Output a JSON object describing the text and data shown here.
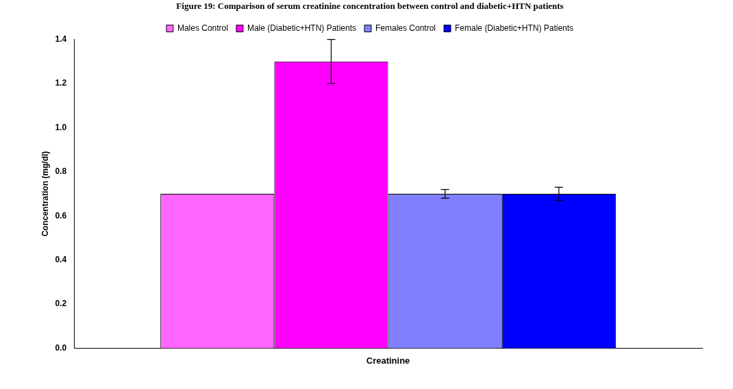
{
  "chart_data": {
    "type": "bar",
    "title": "Figure 19: Comparison of serum creatinine concentration between control and diabetic+HTN patients",
    "categories": [
      "Creatinine"
    ],
    "ylabel": "Concentration (mg/dl)",
    "series": [
      {
        "name": "Males Control",
        "color": "#ff66ff",
        "values": [
          0.7
        ],
        "errors": [
          null
        ]
      },
      {
        "name": "Male (Diabetic+HTN) Patients",
        "color": "#ff00ff",
        "values": [
          1.3
        ],
        "errors": [
          0.1
        ]
      },
      {
        "name": "Females Control",
        "color": "#8080ff",
        "values": [
          0.7
        ],
        "errors": [
          0.02
        ]
      },
      {
        "name": "Female (Diabetic+HTN) Patients",
        "color": "#0000ff",
        "values": [
          0.7
        ],
        "errors": [
          0.03
        ]
      }
    ],
    "ylim": [
      0,
      1.4
    ],
    "yticks": [
      {
        "value": 0,
        "label": "0.0"
      },
      {
        "value": 0.2,
        "label": "0.2"
      },
      {
        "value": 0.4,
        "label": "0.4"
      },
      {
        "value": 0.6,
        "label": "0.6"
      },
      {
        "value": 0.8,
        "label": "0.8"
      },
      {
        "value": 1,
        "label": "1.0"
      },
      {
        "value": 1.2,
        "label": "1.2"
      },
      {
        "value": 1.4,
        "label": "1.4"
      }
    ],
    "grid": false,
    "legend": "top"
  }
}
